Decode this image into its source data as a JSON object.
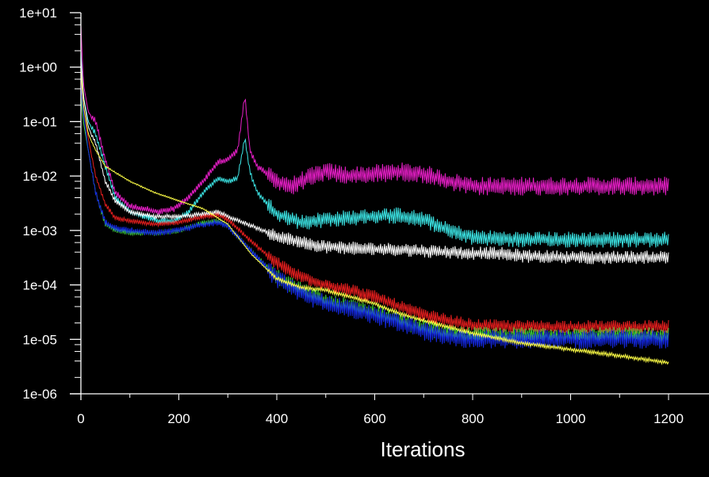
{
  "chart_data": {
    "type": "line",
    "title": "",
    "xlabel": "Iterations",
    "ylabel": "",
    "xlim": [
      0,
      1200
    ],
    "ylim": [
      1e-06,
      10
    ],
    "yscale": "log",
    "grid": false,
    "background": "#000000",
    "axis_color": "#ffffff",
    "x_ticks": [
      0,
      200,
      400,
      600,
      800,
      1000,
      1200
    ],
    "x_tick_labels": [
      "0",
      "200",
      "400",
      "600",
      "800",
      "1000",
      "1200"
    ],
    "y_ticks": [
      10,
      1,
      0.1,
      0.01,
      0.001,
      0.0001,
      1e-05,
      1e-06
    ],
    "y_tick_labels": [
      "1e+01",
      "1e+00",
      "1e-01",
      "1e-02",
      "1e-03",
      "1e-04",
      "1e-05",
      "1e-06"
    ],
    "series": [
      {
        "name": "magenta",
        "color": "#e81ec8",
        "noise": 0.35,
        "x": [
          0,
          5,
          15,
          30,
          50,
          70,
          100,
          130,
          160,
          190,
          220,
          250,
          280,
          300,
          320,
          335,
          345,
          360,
          400,
          430,
          460,
          500,
          550,
          600,
          650,
          700,
          750,
          800,
          900,
          1000,
          1100,
          1200
        ],
        "y": [
          6,
          0.5,
          0.15,
          0.1,
          0.02,
          0.005,
          0.0028,
          0.0025,
          0.0022,
          0.0025,
          0.004,
          0.008,
          0.018,
          0.02,
          0.03,
          0.3,
          0.03,
          0.015,
          0.008,
          0.0065,
          0.009,
          0.012,
          0.01,
          0.011,
          0.012,
          0.011,
          0.008,
          0.0065,
          0.0065,
          0.0065,
          0.0065,
          0.0065
        ]
      },
      {
        "name": "cyan",
        "color": "#3ce6e6",
        "noise": 0.3,
        "x": [
          0,
          5,
          15,
          30,
          50,
          70,
          100,
          130,
          160,
          190,
          220,
          250,
          280,
          300,
          320,
          335,
          345,
          360,
          400,
          450,
          500,
          550,
          600,
          650,
          700,
          750,
          800,
          900,
          1000,
          1100,
          1200
        ],
        "y": [
          2,
          0.3,
          0.1,
          0.06,
          0.015,
          0.004,
          0.0022,
          0.0018,
          0.0015,
          0.0015,
          0.0022,
          0.005,
          0.009,
          0.008,
          0.009,
          0.05,
          0.012,
          0.005,
          0.002,
          0.0014,
          0.0016,
          0.0017,
          0.0018,
          0.0019,
          0.0016,
          0.001,
          0.00075,
          0.00068,
          0.00068,
          0.00068,
          0.00068
        ]
      },
      {
        "name": "white",
        "color": "#ffffff",
        "noise": 0.25,
        "x": [
          0,
          5,
          15,
          30,
          50,
          70,
          100,
          150,
          200,
          250,
          280,
          300,
          350,
          400,
          450,
          500,
          550,
          600,
          650,
          700,
          750,
          800,
          850,
          900,
          1000,
          1100,
          1200
        ],
        "y": [
          1.5,
          0.3,
          0.08,
          0.04,
          0.008,
          0.0035,
          0.0022,
          0.0018,
          0.0018,
          0.002,
          0.0022,
          0.0018,
          0.0012,
          0.0008,
          0.0006,
          0.0005,
          0.00048,
          0.00045,
          0.00045,
          0.00042,
          0.0004,
          0.00038,
          0.00038,
          0.00034,
          0.00032,
          0.00032,
          0.00032
        ]
      },
      {
        "name": "red",
        "color": "#e61e1e",
        "noise": 0.25,
        "x": [
          0,
          5,
          15,
          30,
          50,
          70,
          100,
          150,
          200,
          250,
          280,
          300,
          350,
          400,
          450,
          500,
          550,
          600,
          650,
          700,
          750,
          800,
          900,
          1000,
          1100,
          1200
        ],
        "y": [
          0.8,
          0.2,
          0.05,
          0.01,
          0.003,
          0.0017,
          0.0015,
          0.0013,
          0.0014,
          0.0018,
          0.0019,
          0.0016,
          0.0006,
          0.00025,
          0.00014,
          0.0001,
          8e-05,
          6e-05,
          4e-05,
          2.8e-05,
          2.2e-05,
          1.8e-05,
          1.7e-05,
          1.7e-05,
          1.7e-05,
          1.7e-05
        ]
      },
      {
        "name": "green",
        "color": "#3ccc3c",
        "noise": 0.3,
        "x": [
          0,
          5,
          15,
          30,
          50,
          70,
          100,
          150,
          200,
          250,
          280,
          300,
          350,
          400,
          450,
          500,
          550,
          600,
          650,
          700,
          750,
          800,
          900,
          1000,
          1100,
          1200
        ],
        "y": [
          0.3,
          0.1,
          0.03,
          0.005,
          0.0013,
          0.001,
          0.0009,
          0.0009,
          0.001,
          0.0014,
          0.0015,
          0.0012,
          0.0004,
          0.00014,
          8e-05,
          5e-05,
          4e-05,
          3.2e-05,
          2.2e-05,
          1.6e-05,
          1.3e-05,
          1.2e-05,
          1.2e-05,
          1.2e-05,
          1.2e-05,
          1.2e-05
        ]
      },
      {
        "name": "blue",
        "color": "#1428e6",
        "noise": 0.35,
        "x": [
          0,
          5,
          15,
          30,
          50,
          70,
          100,
          150,
          200,
          250,
          280,
          300,
          350,
          400,
          450,
          500,
          550,
          600,
          650,
          700,
          750,
          800,
          900,
          1000,
          1100,
          1200
        ],
        "y": [
          0.5,
          0.15,
          0.03,
          0.005,
          0.0014,
          0.0011,
          0.001,
          0.0009,
          0.001,
          0.0013,
          0.0014,
          0.0012,
          0.0004,
          0.00013,
          7e-05,
          4.5e-05,
          3.5e-05,
          2.8e-05,
          2e-05,
          1.4e-05,
          1.1e-05,
          1e-05,
          1e-05,
          1e-05,
          1e-05,
          1e-05
        ]
      },
      {
        "name": "yellow",
        "color": "#ffff46",
        "noise": 0.08,
        "x": [
          0,
          5,
          15,
          30,
          50,
          100,
          150,
          200,
          250,
          300,
          350,
          400,
          450,
          500,
          550,
          600,
          650,
          700,
          750,
          800,
          900,
          1000,
          1100,
          1200
        ],
        "y": [
          1,
          0.2,
          0.06,
          0.03,
          0.015,
          0.008,
          0.005,
          0.0035,
          0.0025,
          0.0013,
          0.00035,
          0.00013,
          9e-05,
          8e-05,
          6e-05,
          4.5e-05,
          3e-05,
          2.2e-05,
          1.7e-05,
          1.3e-05,
          8.5e-06,
          6.5e-06,
          5e-06,
          3.7e-06
        ]
      }
    ]
  }
}
